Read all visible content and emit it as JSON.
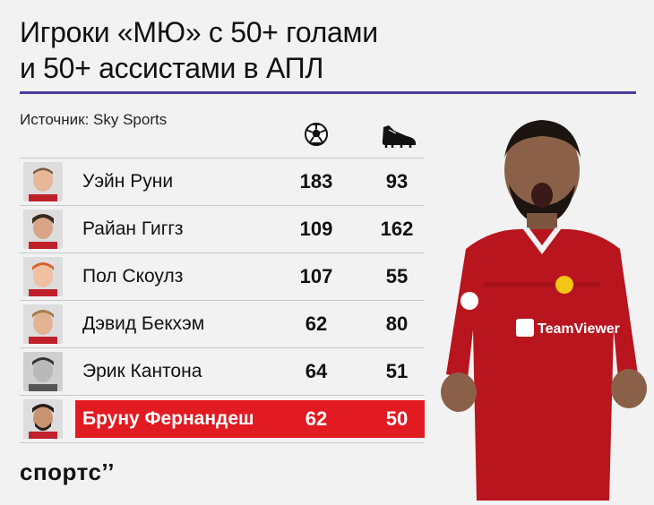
{
  "title": {
    "line1": "Игроки «МЮ» с 50+ голами",
    "line2": "и 50+ ассистами в АПЛ"
  },
  "source": "Источник: Sky Sports",
  "columns": [
    {
      "icon": "football-icon"
    },
    {
      "icon": "boot-icon"
    }
  ],
  "players": [
    {
      "name": "Уэйн Руни",
      "goals": "183",
      "assists": "93"
    },
    {
      "name": "Райан Гиггз",
      "goals": "109",
      "assists": "162"
    },
    {
      "name": "Пол Скоулз",
      "goals": "107",
      "assists": "55"
    },
    {
      "name": "Дэвид Бекхэм",
      "goals": "62",
      "assists": "80"
    },
    {
      "name": "Эрик Кантона",
      "goals": "64",
      "assists": "51"
    },
    {
      "name": "Бруну Фернандеш",
      "goals": "62",
      "assists": "50",
      "highlighted": true
    }
  ],
  "colors": {
    "accent_rule": "#4a3aa0",
    "highlight": "#e21a22",
    "shirt": "#b8151f"
  },
  "shirt_text": "TeamViewer",
  "logo": "спортс’’"
}
